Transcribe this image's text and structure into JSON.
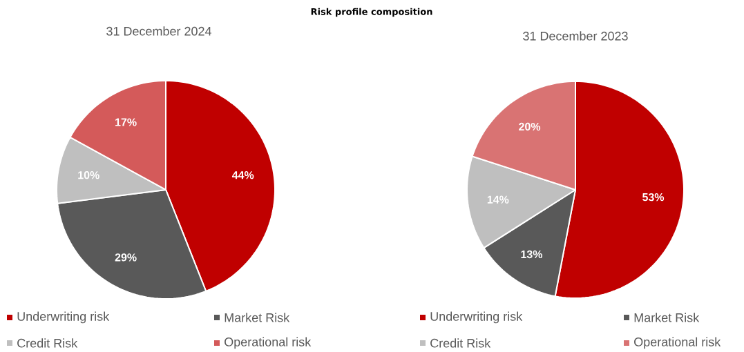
{
  "chart_data": [
    {
      "type": "pie",
      "title": "Risk profile composition",
      "subtitle": "31 December 2024",
      "categories": [
        "Underwriting risk",
        "Market Risk",
        "Credit Risk",
        "Operational risk"
      ],
      "values": [
        44,
        29,
        10,
        17
      ],
      "value_labels": [
        "44%",
        "29%",
        "10%",
        "17%"
      ],
      "colors": [
        "#c00000",
        "#595959",
        "#bfbfbf",
        "#d45a5a"
      ],
      "legend": "bottom"
    },
    {
      "type": "pie",
      "subtitle": "31 December 2023",
      "categories": [
        "Underwriting risk",
        "Market Risk",
        "Credit Risk",
        "Operational risk"
      ],
      "values": [
        53,
        13,
        14,
        20
      ],
      "value_labels": [
        "53%",
        "13%",
        "14%",
        "20%"
      ],
      "colors": [
        "#c00000",
        "#595959",
        "#bfbfbf",
        "#d97373"
      ],
      "legend": "bottom"
    }
  ]
}
